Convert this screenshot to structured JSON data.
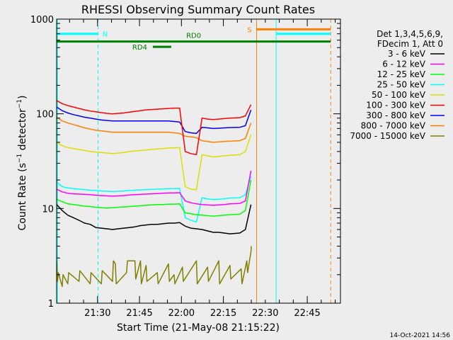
{
  "chart_data": {
    "type": "line",
    "title": "RHESSI Observing Summary Count Rates",
    "xlabel": "Start Time (21-May-08 21:15:22)",
    "ylabel": "Count Rate (s⁻¹ detector⁻¹)",
    "ylabel_parts": {
      "main": "Count Rate (s",
      "exp1": "−1",
      "mid": " detector",
      "exp2": "−1",
      "end": ")"
    },
    "x_unit": "minutes since 21:15:22",
    "xlim": [
      0,
      101.5
    ],
    "ylim": [
      1,
      1000
    ],
    "yscale": "log",
    "x_ticks": [
      {
        "x": 14.63,
        "label": "21:30"
      },
      {
        "x": 29.63,
        "label": "21:45"
      },
      {
        "x": 44.63,
        "label": "22:00"
      },
      {
        "x": 59.63,
        "label": "22:15"
      },
      {
        "x": 74.63,
        "label": "22:30"
      },
      {
        "x": 89.63,
        "label": "22:45"
      }
    ],
    "y_ticks": [
      {
        "y": 1,
        "label": "1"
      },
      {
        "y": 10,
        "label": "10"
      },
      {
        "y": 100,
        "label": "100"
      },
      {
        "y": 1000,
        "label": "1000"
      }
    ],
    "legend": {
      "position": "top-right",
      "header": [
        "Det 1,3,4,5,6,9,",
        "FDecim 1, Att 0"
      ]
    },
    "series": [
      {
        "name": "3 - 6 keV",
        "color": "#000000",
        "x": [
          0,
          2,
          4,
          6,
          8,
          10,
          12,
          14,
          16,
          18,
          20,
          22,
          24,
          26,
          28,
          30,
          32,
          34,
          36,
          38,
          40,
          42,
          44,
          46,
          48,
          50,
          52,
          54,
          56,
          58,
          60,
          62,
          65.5,
          67.5,
          69.5
        ],
        "y": [
          11,
          9.5,
          8.5,
          8,
          7.5,
          7,
          6.8,
          6.3,
          6.2,
          6.1,
          6,
          6.1,
          6.2,
          6.3,
          6.4,
          6.6,
          6.7,
          6.8,
          6.8,
          6.9,
          7,
          7,
          7.1,
          6.5,
          6.2,
          6.1,
          6,
          5.8,
          5.6,
          5.6,
          5.5,
          5.4,
          5.5,
          6,
          11
        ]
      },
      {
        "name": "6 - 12 keV",
        "color": "#ff00ff",
        "x": [
          0,
          2,
          4,
          6,
          8,
          10,
          12,
          14,
          16,
          18,
          20,
          22,
          24,
          26,
          28,
          30,
          32,
          34,
          36,
          38,
          40,
          42,
          44,
          46,
          48,
          50,
          52,
          54,
          56,
          58,
          60,
          62,
          65.5,
          67.5,
          69.5
        ],
        "y": [
          16,
          15,
          14.5,
          14.3,
          14.2,
          14.1,
          14,
          13.8,
          13.7,
          13.6,
          13.5,
          13.6,
          13.7,
          13.9,
          14,
          14.1,
          14.2,
          14.3,
          14.4,
          14.5,
          14.6,
          14.6,
          14.7,
          12,
          11.5,
          11.2,
          11,
          10.9,
          10.8,
          10.9,
          11,
          11.2,
          11.3,
          12,
          25
        ]
      },
      {
        "name": "12 - 25 keV",
        "color": "#00ff00",
        "x": [
          0,
          2,
          4,
          6,
          8,
          10,
          12,
          14,
          16,
          18,
          20,
          22,
          24,
          26,
          28,
          30,
          32,
          34,
          36,
          38,
          40,
          42,
          44,
          46,
          48,
          50,
          52,
          54,
          56,
          58,
          60,
          62,
          65.5,
          67.5,
          69.5
        ],
        "y": [
          12.5,
          11.8,
          11.2,
          11,
          10.8,
          10.6,
          10.5,
          10.3,
          10.2,
          10.1,
          10.2,
          10.3,
          10.4,
          10.5,
          10.6,
          10.7,
          10.8,
          10.9,
          11,
          11,
          11.1,
          11.1,
          11.2,
          9,
          8.8,
          8.6,
          8.5,
          8.4,
          8.3,
          8.4,
          8.5,
          8.6,
          8.7,
          9.5,
          20
        ]
      },
      {
        "name": "25 - 50 keV",
        "color": "#00ffff",
        "x": [
          0,
          2,
          4,
          6,
          8,
          10,
          12,
          14,
          16,
          18,
          20,
          22,
          24,
          26,
          28,
          30,
          32,
          34,
          36,
          38,
          40,
          42,
          44,
          46,
          48,
          50,
          52,
          54,
          56,
          58,
          60,
          62,
          65.5,
          67.5,
          69.5
        ],
        "y": [
          19,
          17,
          16.5,
          16.2,
          16,
          15.8,
          15.6,
          15.5,
          15.3,
          15.2,
          15.1,
          15.2,
          15.3,
          15.5,
          15.6,
          15.7,
          15.8,
          15.9,
          16,
          16.1,
          16.2,
          16.2,
          16.3,
          8,
          7.5,
          7.2,
          13,
          12.6,
          12.4,
          12.5,
          12.7,
          12.9,
          13,
          14,
          22
        ]
      },
      {
        "name": "50 - 100 keV",
        "color": "#dddd00",
        "x": [
          0,
          2,
          4,
          6,
          8,
          10,
          12,
          14,
          16,
          18,
          20,
          22,
          24,
          26,
          28,
          30,
          32,
          34,
          36,
          38,
          40,
          42,
          44,
          46,
          48,
          50,
          52,
          54,
          56,
          58,
          60,
          62,
          65.5,
          67.5,
          69.5
        ],
        "y": [
          50,
          46,
          44,
          43,
          42,
          41,
          40,
          39.5,
          39,
          38.5,
          38,
          38.5,
          39,
          40,
          40.5,
          41,
          41.5,
          42,
          42.5,
          43,
          43.5,
          43.7,
          44,
          17,
          16,
          15.8,
          37,
          36,
          35,
          35.5,
          36,
          36.5,
          37,
          40,
          60
        ]
      },
      {
        "name": "100 - 300 keV",
        "color": "#ff0000",
        "x": [
          0,
          2,
          4,
          6,
          8,
          10,
          12,
          14,
          16,
          18,
          20,
          22,
          24,
          26,
          28,
          30,
          32,
          34,
          36,
          38,
          40,
          42,
          44,
          46,
          48,
          50,
          52,
          54,
          56,
          58,
          60,
          62,
          65.5,
          67.5,
          69.5
        ],
        "y": [
          138,
          128,
          122,
          118,
          114,
          110,
          107,
          105,
          103,
          101,
          100,
          101,
          102,
          104,
          106,
          108,
          110,
          111,
          112,
          113,
          114,
          115,
          115,
          40,
          38,
          37,
          90,
          88,
          87,
          88,
          89,
          90,
          91,
          95,
          125
        ]
      },
      {
        "name": "300 - 800 keV",
        "color": "#0000ff",
        "x": [
          0,
          2,
          4,
          6,
          8,
          10,
          12,
          14,
          16,
          18,
          20,
          22,
          24,
          26,
          28,
          30,
          32,
          34,
          36,
          38,
          40,
          42,
          44,
          46,
          48,
          50,
          52,
          54,
          56,
          58,
          60,
          62,
          65.5,
          67.5,
          69.5
        ],
        "y": [
          118,
          108,
          102,
          98,
          95,
          92,
          90,
          88,
          86,
          85,
          84,
          84,
          84,
          84,
          84,
          84,
          84,
          84,
          84,
          84,
          84,
          83,
          82,
          65,
          63,
          62,
          72,
          71,
          70,
          70.5,
          71,
          71.5,
          72,
          75,
          110
        ]
      },
      {
        "name": "800 - 7000 keV",
        "color": "#ff8000",
        "x": [
          0,
          2,
          4,
          6,
          8,
          10,
          12,
          14,
          16,
          18,
          20,
          22,
          24,
          26,
          28,
          30,
          32,
          34,
          36,
          38,
          40,
          42,
          44,
          46,
          48,
          50,
          52,
          54,
          56,
          58,
          60,
          62,
          65.5,
          67.5,
          69.5
        ],
        "y": [
          92,
          84,
          80,
          77,
          74,
          71,
          69,
          67,
          66,
          65,
          64,
          64,
          64,
          64,
          64,
          64,
          64,
          64,
          64,
          64,
          64,
          63,
          62,
          58,
          57,
          56,
          52,
          51,
          50,
          50.5,
          51,
          51.5,
          52,
          55,
          80
        ]
      },
      {
        "name": "7000 - 15000 keV",
        "color": "#808000",
        "x": [
          0,
          0.3,
          0.6,
          2,
          2.3,
          4,
          4.3,
          8,
          8.3,
          12,
          12.3,
          16,
          16.3,
          20,
          20.3,
          21,
          21.3,
          25,
          25.3,
          28,
          28.3,
          30,
          30.3,
          32,
          32.3,
          36,
          36.3,
          40,
          40.3,
          42,
          42.3,
          45,
          45.3,
          50,
          50.3,
          54,
          54.3,
          58,
          58.3,
          62,
          62.3,
          66,
          66.3,
          68,
          68.3,
          69.5,
          69.6
        ],
        "y": [
          2.8,
          1.7,
          2.1,
          1.5,
          2,
          1.6,
          2.1,
          1.7,
          2.2,
          1.6,
          2.1,
          1.6,
          2.2,
          1.7,
          2.8,
          2.6,
          1.6,
          2.1,
          2.8,
          2.8,
          1.8,
          2.8,
          1.6,
          2.5,
          1.7,
          2.1,
          1.6,
          2.6,
          1.7,
          2,
          1.6,
          2.4,
          1.7,
          2.8,
          1.6,
          2.4,
          1.7,
          2.8,
          1.6,
          2.5,
          1.8,
          2.3,
          1.6,
          2.8,
          2.1,
          3.5,
          4
        ]
      }
    ],
    "status_bars": [
      {
        "label": "N",
        "color": "#00ffff",
        "y": 700,
        "segments": [
          [
            0,
            14.8
          ],
          [
            78.5,
            98
          ]
        ]
      },
      {
        "label": "S",
        "color": "#ff8000",
        "y": 780,
        "segments": [
          [
            71.5,
            98
          ]
        ]
      },
      {
        "label": "RD0",
        "color": "#008000",
        "y": 580,
        "segments": [
          [
            0,
            98
          ]
        ]
      },
      {
        "label": "RD4",
        "color": "#008000",
        "y": 510,
        "segments": [
          [
            34.4,
            41
          ]
        ]
      }
    ],
    "vertical_markers": [
      {
        "x": 0.3,
        "color": "#00ffff",
        "style": "solid"
      },
      {
        "x": 14.8,
        "color": "#00ffff",
        "style": "dashed"
      },
      {
        "x": 71.5,
        "color": "#ff8000",
        "style": "solid"
      },
      {
        "x": 78.5,
        "color": "#00ffff",
        "style": "solid"
      },
      {
        "x": 98,
        "color": "#ff8000",
        "style": "dashed"
      }
    ],
    "grid": false,
    "timestamp": "14-Oct-2021 14:56"
  }
}
